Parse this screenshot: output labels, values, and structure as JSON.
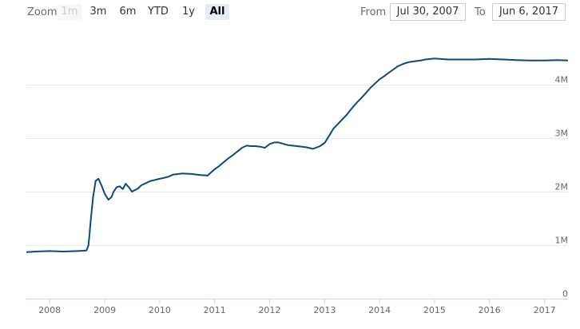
{
  "toolbar": {
    "zoom_label": "Zoom",
    "buttons": [
      {
        "label": "1m",
        "state": "disabled"
      },
      {
        "label": "3m",
        "state": "normal"
      },
      {
        "label": "6m",
        "state": "normal"
      },
      {
        "label": "YTD",
        "state": "normal"
      },
      {
        "label": "1y",
        "state": "normal"
      },
      {
        "label": "All",
        "state": "active"
      }
    ],
    "from_label": "From",
    "from_value": "Jul 30, 2007",
    "to_label": "To",
    "to_value": "Jun 6, 2017"
  },
  "colors": {
    "series": "#0c4a7d",
    "grid": "#e6e6e6",
    "active_button": "#e6ebf5"
  },
  "chart_data": {
    "type": "line",
    "title": "",
    "xlabel": "",
    "ylabel": "",
    "x_range": [
      "2007-07-30",
      "2017-06-06"
    ],
    "ylim": [
      0,
      5000000
    ],
    "grid": true,
    "legend": "none",
    "x_ticks": [
      "2008",
      "2009",
      "2010",
      "2011",
      "2012",
      "2013",
      "2014",
      "2015",
      "2016",
      "2017"
    ],
    "y_ticks": [
      {
        "value": 0,
        "label": "0"
      },
      {
        "value": 1000000,
        "label": "1M"
      },
      {
        "value": 2000000,
        "label": "2M"
      },
      {
        "value": 3000000,
        "label": "3M"
      },
      {
        "value": 4000000,
        "label": "4M"
      }
    ],
    "series": [
      {
        "x": [
          "2007-07-30",
          "2007-10-01",
          "2008-01-01",
          "2008-04-01",
          "2008-07-01",
          "2008-09-01",
          "2008-09-15",
          "2008-10-01",
          "2008-10-15",
          "2008-11-01",
          "2008-11-20",
          "2008-12-10",
          "2009-01-01",
          "2009-01-25",
          "2009-02-15",
          "2009-03-01",
          "2009-03-20",
          "2009-04-10",
          "2009-05-01",
          "2009-05-20",
          "2009-06-10",
          "2009-07-01",
          "2009-07-20",
          "2009-08-10",
          "2009-09-01",
          "2009-10-01",
          "2009-11-01",
          "2009-12-01",
          "2010-01-01",
          "2010-02-01",
          "2010-03-01",
          "2010-04-01",
          "2010-06-01",
          "2010-08-01",
          "2010-10-01",
          "2010-11-15",
          "2011-01-01",
          "2011-02-01",
          "2011-03-01",
          "2011-04-01",
          "2011-05-01",
          "2011-06-01",
          "2011-07-01",
          "2011-08-01",
          "2011-09-01",
          "2011-10-01",
          "2011-11-01",
          "2011-12-01",
          "2012-01-01",
          "2012-02-01",
          "2012-03-01",
          "2012-05-01",
          "2012-07-01",
          "2012-09-01",
          "2012-10-15",
          "2012-12-01",
          "2013-01-01",
          "2013-02-01",
          "2013-03-01",
          "2013-04-01",
          "2013-05-01",
          "2013-06-01",
          "2013-07-01",
          "2013-08-01",
          "2013-09-01",
          "2013-10-01",
          "2013-11-01",
          "2013-12-01",
          "2014-01-01",
          "2014-02-01",
          "2014-03-01",
          "2014-04-01",
          "2014-05-01",
          "2014-06-01",
          "2014-07-01",
          "2014-08-01",
          "2014-09-01",
          "2014-10-01",
          "2014-11-01",
          "2015-01-01",
          "2015-04-01",
          "2015-07-01",
          "2015-10-01",
          "2016-01-01",
          "2016-04-01",
          "2016-07-01",
          "2016-10-01",
          "2017-01-01",
          "2017-04-01",
          "2017-06-06"
        ],
        "values": [
          870000,
          880000,
          890000,
          880000,
          890000,
          900000,
          1000000,
          1500000,
          1900000,
          2200000,
          2240000,
          2120000,
          1960000,
          1850000,
          1900000,
          2000000,
          2080000,
          2100000,
          2050000,
          2150000,
          2080000,
          2000000,
          2030000,
          2060000,
          2120000,
          2160000,
          2200000,
          2220000,
          2240000,
          2260000,
          2280000,
          2320000,
          2340000,
          2330000,
          2310000,
          2300000,
          2420000,
          2480000,
          2550000,
          2620000,
          2680000,
          2750000,
          2820000,
          2860000,
          2850000,
          2850000,
          2840000,
          2820000,
          2890000,
          2920000,
          2920000,
          2870000,
          2850000,
          2830000,
          2800000,
          2850000,
          2910000,
          3050000,
          3180000,
          3270000,
          3360000,
          3450000,
          3560000,
          3660000,
          3750000,
          3840000,
          3940000,
          4020000,
          4100000,
          4160000,
          4220000,
          4280000,
          4340000,
          4380000,
          4410000,
          4430000,
          4440000,
          4450000,
          4470000,
          4490000,
          4470000,
          4470000,
          4470000,
          4480000,
          4470000,
          4460000,
          4450000,
          4450000,
          4460000,
          4450000
        ]
      }
    ]
  }
}
